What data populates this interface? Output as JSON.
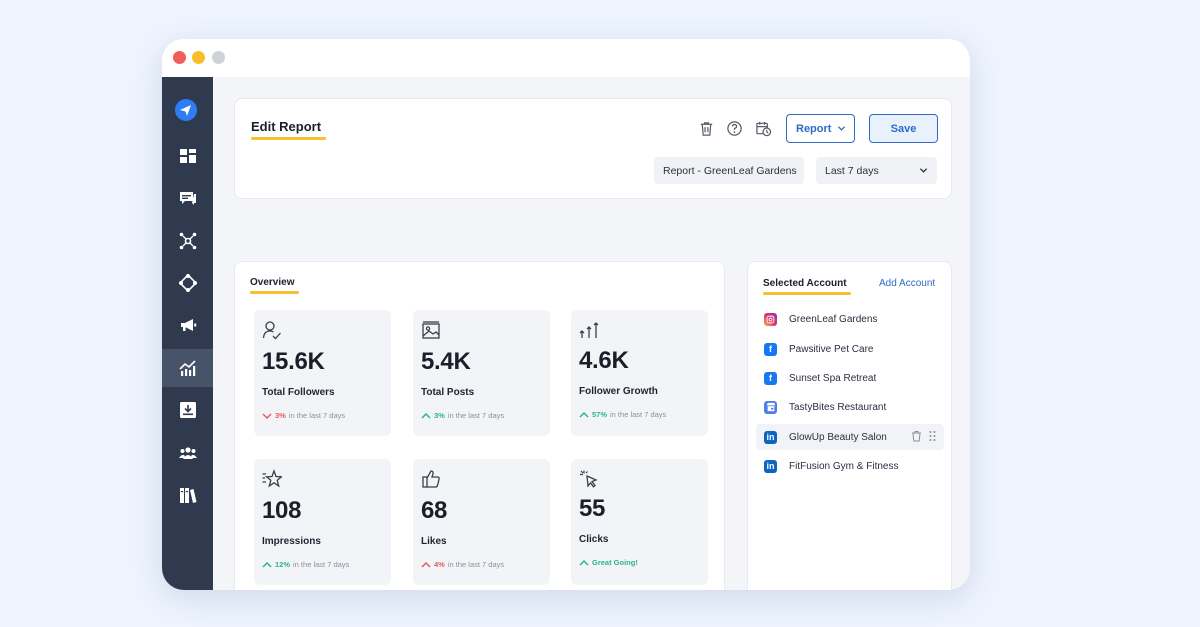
{
  "header": {
    "title": "Edit Report",
    "report_dropdown": "Report",
    "save_label": "Save",
    "report_name": "Report - GreenLeaf Gardens",
    "date_range": "Last 7 days"
  },
  "overview": {
    "title": "Overview",
    "stats": [
      {
        "value": "15.6K",
        "label": "Total Followers",
        "pct": "3%",
        "note": "in the last 7 days",
        "direction": "down",
        "icon": "user-check-icon"
      },
      {
        "value": "5.4K",
        "label": "Total Posts",
        "pct": "3%",
        "note": "in the last 7 days",
        "direction": "up",
        "icon": "image-icon"
      },
      {
        "value": "4.6K",
        "label": "Follower Growth",
        "pct": "57%",
        "note": "in the last 7 days",
        "direction": "up",
        "icon": "growth-arrows-icon"
      },
      {
        "value": "108",
        "label": "Impressions",
        "pct": "12%",
        "note": "in the last 7 days",
        "direction": "up",
        "icon": "star-icon"
      },
      {
        "value": "68",
        "label": "Likes",
        "pct": "4%",
        "note": "in the last 7 days",
        "direction": "up-red",
        "icon": "thumbs-up-icon"
      },
      {
        "value": "55",
        "label": "Clicks",
        "pct": "",
        "note": "Great Going!",
        "direction": "up",
        "icon": "cursor-click-icon"
      }
    ]
  },
  "accounts": {
    "title": "Selected Account",
    "add_label": "Add Account",
    "items": [
      {
        "name": "GreenLeaf Gardens",
        "network": "instagram"
      },
      {
        "name": "Pawsitive Pet Care",
        "network": "facebook"
      },
      {
        "name": "Sunset Spa Retreat",
        "network": "facebook"
      },
      {
        "name": "TastyBites Restaurant",
        "network": "google-business"
      },
      {
        "name": "GlowUp Beauty Salon",
        "network": "linkedin"
      },
      {
        "name": "FitFusion Gym & Fitness",
        "network": "linkedin"
      }
    ]
  },
  "colors": {
    "sidebar": "#2f3a4e",
    "accent_blue": "#2f6bc4",
    "underline_yellow": "#f5c12e",
    "trend_up": "#2bb488",
    "trend_down": "#e35b5b"
  }
}
